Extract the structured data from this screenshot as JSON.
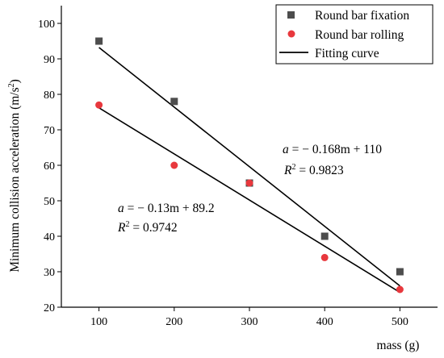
{
  "chart_data": {
    "type": "scatter",
    "xlabel": "mass (g)",
    "ylabel": "Minimum collision acceleration (m/s²)",
    "ylabel_main": "Minimum collision acceleration (m/s",
    "ylabel_sup": "2",
    "ylabel_close": ")",
    "xlim": [
      50,
      550
    ],
    "ylim": [
      20,
      105
    ],
    "xticks": [
      100,
      200,
      300,
      400,
      500
    ],
    "yticks": [
      20,
      30,
      40,
      50,
      60,
      70,
      80,
      90,
      100
    ],
    "grid": false,
    "legend_position": "top-right",
    "series": [
      {
        "name": "Round bar fixation",
        "marker": "square",
        "color": "#4d4d4d",
        "x": [
          100,
          200,
          300,
          400,
          500
        ],
        "y": [
          95,
          78,
          55,
          40,
          30
        ]
      },
      {
        "name": "Round bar rolling",
        "marker": "circle",
        "color": "#e8383d",
        "x": [
          100,
          200,
          300,
          400,
          500
        ],
        "y": [
          77,
          60,
          55,
          34,
          25
        ]
      }
    ],
    "fits": [
      {
        "name": "Fitting curve",
        "color": "#000000",
        "slope": -0.168,
        "intercept": 110,
        "x_range": [
          100,
          500
        ]
      },
      {
        "color": "#000000",
        "slope": -0.13,
        "intercept": 89.2,
        "x_range": [
          100,
          500
        ]
      }
    ],
    "annotations": [
      {
        "eq_var": "a",
        "eq_rest": " = − 0.168m + 110",
        "r2_var": "R",
        "r2_sup": "2",
        "r2_rest": " = 0.9823"
      },
      {
        "eq_var": "a",
        "eq_rest": " = − 0.13m + 89.2",
        "r2_var": "R",
        "r2_sup": "2",
        "r2_rest": " = 0.9742"
      }
    ]
  }
}
